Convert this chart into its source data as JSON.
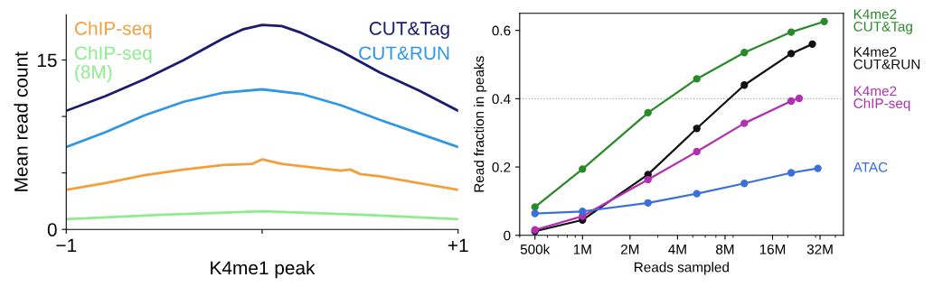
{
  "chart_data": [
    {
      "type": "line",
      "xlabel": "K4me1 peak",
      "ylabel": "Mean read count",
      "xlim": [
        -1,
        1
      ],
      "ylim": [
        0,
        19
      ],
      "xticks": [
        {
          "value": -1,
          "label": "−1"
        },
        {
          "value": 0,
          "label": null
        },
        {
          "value": 1,
          "label": "+1"
        }
      ],
      "yticks": [
        0,
        {
          "value": 5,
          "label": null
        },
        {
          "value": 10,
          "label": null
        },
        15
      ],
      "marker": "none",
      "grid": false,
      "series": [
        {
          "name": "CUT&Tag",
          "color": "#1c1c6e",
          "x": [
            -1,
            -0.8,
            -0.6,
            -0.4,
            -0.2,
            -0.1,
            0,
            0.1,
            0.2,
            0.4,
            0.6,
            0.8,
            1
          ],
          "values": [
            10.5,
            11.8,
            13.3,
            15.0,
            16.9,
            17.7,
            18.1,
            18.0,
            17.4,
            15.8,
            13.9,
            12.3,
            10.5
          ]
        },
        {
          "name": "CUT&RUN",
          "color": "#2f97e3",
          "x": [
            -1,
            -0.8,
            -0.6,
            -0.4,
            -0.2,
            0,
            0.2,
            0.4,
            0.6,
            0.8,
            1
          ],
          "values": [
            7.3,
            8.6,
            10.1,
            11.3,
            12.1,
            12.4,
            12.0,
            11.0,
            9.7,
            8.5,
            7.3
          ]
        },
        {
          "name": "ChIP-seq",
          "color": "#f3a03c",
          "x": [
            -1,
            -0.8,
            -0.6,
            -0.4,
            -0.2,
            -0.05,
            0,
            0.1,
            0.2,
            0.4,
            0.45,
            0.5,
            0.6,
            0.8,
            1
          ],
          "values": [
            3.5,
            4.1,
            4.8,
            5.3,
            5.7,
            5.8,
            6.2,
            5.8,
            5.6,
            5.2,
            5.3,
            4.9,
            4.7,
            4.1,
            3.5
          ]
        },
        {
          "name": "ChIP-seq\n(8M)",
          "color": "#8ded8d",
          "x": [
            -1,
            -0.5,
            0,
            0.5,
            1
          ],
          "values": [
            0.9,
            1.3,
            1.6,
            1.3,
            0.9
          ]
        }
      ]
    },
    {
      "type": "line",
      "xlabel": "Reads sampled",
      "ylabel": "Read fraction in peaks",
      "log": "x",
      "xlim": [
        400000,
        45000000
      ],
      "ylim": [
        0,
        0.65
      ],
      "xticks": [
        {
          "value": 500000,
          "label": "500k"
        },
        {
          "value": 1000000,
          "label": "1M"
        },
        {
          "value": 2000000,
          "label": "2M"
        },
        {
          "value": 4000000,
          "label": "4M"
        },
        {
          "value": 8000000,
          "label": "8M"
        },
        {
          "value": 16000000,
          "label": "16M"
        },
        {
          "value": 32000000,
          "label": "32M"
        }
      ],
      "yticks": [
        0,
        0.2,
        0.4,
        0.6
      ],
      "marker": "circle",
      "grid": false,
      "ref_lines": [
        {
          "axis": "y",
          "value": 0.4,
          "color": "#aaaaaa",
          "line_style": "dotted"
        }
      ],
      "series": [
        {
          "name": "K4me2\nCUT&Tag",
          "color": "#2a8a2a",
          "x": [
            500000,
            1000000,
            2600000,
            5300000,
            10600000,
            21000000,
            34000000
          ],
          "values": [
            0.083,
            0.194,
            0.359,
            0.458,
            0.535,
            0.595,
            0.626
          ]
        },
        {
          "name": "K4me2\nCUT&RUN",
          "color": "#111111",
          "x": [
            500000,
            1000000,
            2600000,
            5300000,
            10600000,
            21000000,
            28600000
          ],
          "values": [
            0.012,
            0.045,
            0.178,
            0.313,
            0.44,
            0.532,
            0.56
          ]
        },
        {
          "name": "K4me2\nChIP-seq",
          "color": "#b030b0",
          "x": [
            500000,
            1000000,
            2600000,
            5300000,
            10600000,
            21000000,
            23600000
          ],
          "values": [
            0.016,
            0.056,
            0.163,
            0.245,
            0.328,
            0.393,
            0.401
          ]
        },
        {
          "name": "ATAC",
          "color": "#3a6fdc",
          "x": [
            500000,
            1000000,
            2600000,
            5300000,
            10600000,
            21000000,
            31000000
          ],
          "values": [
            0.064,
            0.07,
            0.095,
            0.122,
            0.152,
            0.183,
            0.196
          ]
        }
      ]
    }
  ]
}
